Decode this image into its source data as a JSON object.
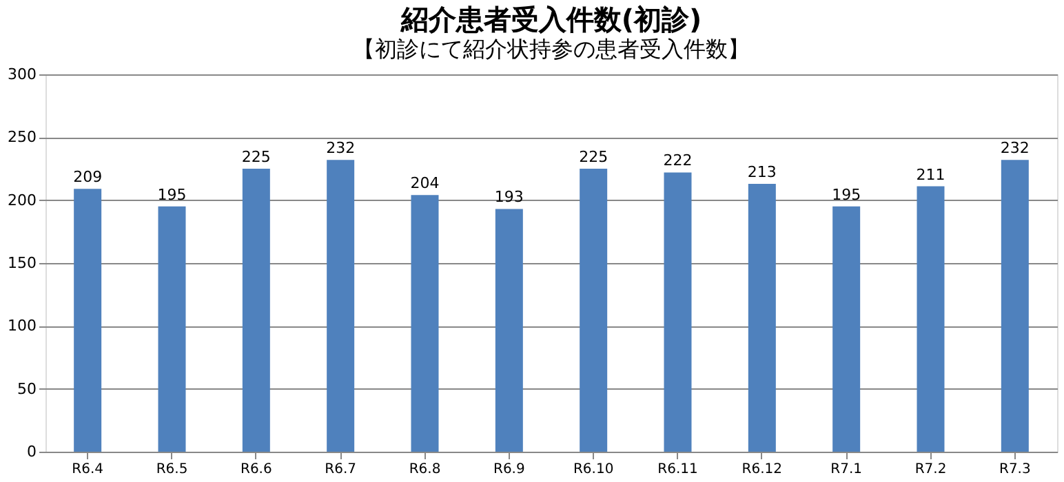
{
  "chart_data": {
    "type": "bar",
    "title": "紹介患者受入件数(初診)",
    "subtitle": "【初診にて紹介状持参の患者受入件数】",
    "categories": [
      "R6.4",
      "R6.5",
      "R6.6",
      "R6.7",
      "R6.8",
      "R6.9",
      "R6.10",
      "R6.11",
      "R6.12",
      "R7.1",
      "R7.2",
      "R7.3"
    ],
    "values": [
      209,
      195,
      225,
      232,
      204,
      193,
      225,
      222,
      213,
      195,
      211,
      232
    ],
    "color": "#4f81bd",
    "ylim": [
      0,
      300
    ],
    "yticks": [
      0,
      50,
      100,
      150,
      200,
      250,
      300
    ],
    "grid": "y",
    "data_labels": true
  }
}
